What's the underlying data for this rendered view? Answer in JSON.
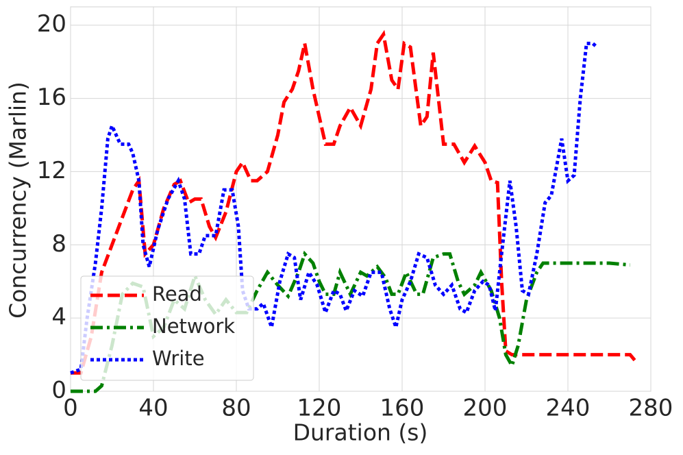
{
  "chart_data": {
    "type": "line",
    "xlabel": "Duration (s)",
    "ylabel": "Concurrency (Marlin)",
    "xlim": [
      0,
      280
    ],
    "ylim": [
      0,
      21
    ],
    "xticks": [
      0,
      40,
      80,
      120,
      160,
      200,
      240,
      280
    ],
    "yticks": [
      0,
      4,
      8,
      12,
      16,
      20
    ],
    "grid": true,
    "legend": "lower left",
    "series": [
      {
        "name": "Read",
        "color": "#ff0000",
        "style": "dashed",
        "x": [
          0,
          5,
          10,
          15,
          20,
          25,
          30,
          33,
          36,
          40,
          45,
          50,
          53,
          57,
          60,
          63,
          67,
          70,
          75,
          80,
          83,
          87,
          90,
          95,
          100,
          103,
          107,
          110,
          113,
          117,
          120,
          123,
          127,
          130,
          135,
          140,
          145,
          148,
          151,
          155,
          158,
          161,
          164,
          169,
          172,
          175,
          180,
          185,
          190,
          195,
          200,
          203,
          206,
          208,
          210,
          213,
          230,
          250,
          270,
          273
        ],
        "values": [
          1,
          1,
          3,
          6.5,
          8,
          9.5,
          11,
          11.5,
          7.5,
          8,
          10,
          11.3,
          11.5,
          10.3,
          10.5,
          10.5,
          9,
          8.4,
          9.8,
          12,
          12.5,
          11.5,
          11.5,
          12,
          14,
          15.8,
          16.5,
          17.5,
          19,
          16.5,
          15,
          13.5,
          13.5,
          14.5,
          15.5,
          14.5,
          16.5,
          19,
          19.5,
          17,
          16.5,
          19,
          18.8,
          14.5,
          15,
          18.5,
          13.5,
          13.5,
          12.5,
          13.4,
          12.5,
          11.5,
          11.4,
          6,
          2.2,
          2,
          2,
          2,
          2,
          1.6
        ]
      },
      {
        "name": "Network",
        "color": "#008000",
        "style": "dashdot",
        "x": [
          0,
          12,
          15,
          20,
          25,
          30,
          35,
          40,
          45,
          50,
          55,
          60,
          65,
          70,
          75,
          80,
          85,
          90,
          95,
          100,
          105,
          110,
          113,
          117,
          120,
          123,
          127,
          130,
          135,
          140,
          143,
          148,
          152,
          155,
          158,
          162,
          167,
          170,
          175,
          180,
          183,
          187,
          190,
          195,
          198,
          203,
          207,
          210,
          213,
          216,
          220,
          225,
          228,
          240,
          260,
          270
        ],
        "values": [
          0,
          0,
          0.3,
          2.5,
          5.3,
          5.9,
          5.7,
          3,
          3.5,
          5,
          4.5,
          6.3,
          5,
          4.2,
          5,
          4.3,
          4.3,
          5.5,
          6.5,
          5.8,
          5.2,
          6.5,
          7.5,
          7,
          6,
          5.3,
          5.3,
          6.5,
          5.3,
          6.5,
          6.3,
          6.8,
          6.2,
          5.3,
          5.3,
          6.5,
          5.3,
          5.3,
          7.3,
          7.5,
          7.5,
          6,
          5.3,
          5.8,
          6.5,
          5.5,
          4,
          2,
          1.4,
          2.5,
          5,
          6.5,
          7,
          7,
          7,
          6.9
        ]
      },
      {
        "name": "Write",
        "color": "#0000ff",
        "style": "dotted",
        "x": [
          0,
          5,
          8,
          12,
          15,
          18,
          20,
          24,
          28,
          30,
          33,
          35,
          38,
          42,
          47,
          52,
          55,
          58,
          62,
          65,
          70,
          74,
          78,
          81,
          83,
          86,
          90,
          93,
          97,
          101,
          105,
          108,
          111,
          115,
          119,
          123,
          127,
          130,
          133,
          137,
          141,
          145,
          150,
          154,
          157,
          160,
          164,
          168,
          172,
          176,
          180,
          184,
          188,
          191,
          195,
          199,
          202,
          205,
          208,
          212,
          215,
          218,
          221,
          225,
          229,
          232,
          237,
          240,
          243,
          246,
          249,
          252,
          254
        ],
        "values": [
          1,
          1.2,
          4,
          7,
          10,
          13.8,
          14.5,
          13.5,
          13.5,
          13,
          11.5,
          8,
          6.8,
          8.8,
          10.5,
          11.5,
          10.5,
          7.5,
          7.5,
          8.5,
          8.5,
          11,
          11,
          9,
          5.5,
          4.5,
          4.5,
          4.8,
          3.5,
          6,
          7.5,
          7.3,
          5,
          6.5,
          5.8,
          4.3,
          5.5,
          5.3,
          4.4,
          5.5,
          5.2,
          6.5,
          6.5,
          4.5,
          3.5,
          5,
          6,
          7.5,
          7.3,
          5.8,
          5.3,
          5.8,
          4.5,
          4.3,
          5.5,
          6,
          5.8,
          4.4,
          7.5,
          11.5,
          9,
          5.5,
          5.3,
          7.5,
          10.3,
          10.7,
          13.8,
          11.5,
          11.8,
          16,
          19,
          19,
          18.8
        ]
      }
    ]
  }
}
